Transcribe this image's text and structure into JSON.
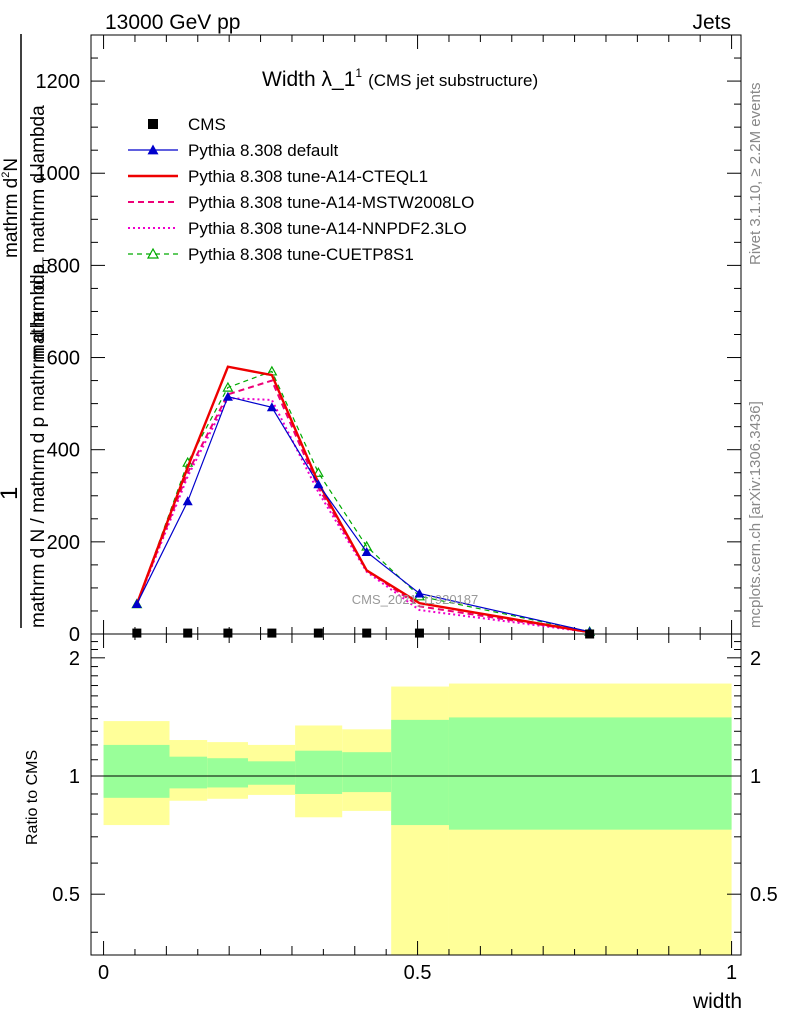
{
  "header": {
    "left": "13000 GeV pp",
    "right": "Jets"
  },
  "side_labels": {
    "rivet": "Rivet 3.1.10, ≥ 2.2M events",
    "mcplots": "mcplots.cern.ch [arXiv:1306.3436]"
  },
  "watermark": "CMS_2021_I1920187",
  "title": {
    "main": "Width λ_1",
    "superscript": "1",
    "sub": "(CMS jet substructure)"
  },
  "ylabel_top": {
    "numerator": "1",
    "denominator": "mathrm d N / mathrm d p_T mathrm d lambda",
    "right_part": "mathrm d²N",
    "right_den": "mathrm d p_T mathrm d lambda",
    "lines": [
      "mathrm d",
      "N",
      "mathrm d p",
      "T",
      "mathrm d lambda",
      "1",
      "mathrm d N / mathrm d p mathrm d lambda",
      "2"
    ]
  },
  "ylabel_ratio": "Ratio to CMS",
  "xlabel": "width",
  "legend": [
    {
      "label": "CMS",
      "color": "#000000"
    },
    {
      "label": "Pythia 8.308 default",
      "color": "#0000cc"
    },
    {
      "label": "Pythia 8.308 tune-A14-CTEQL1",
      "color": "#ee0000"
    },
    {
      "label": "Pythia 8.308 tune-A14-MSTW2008LO",
      "color": "#ee0077"
    },
    {
      "label": "Pythia 8.308 tune-A14-NNPDF2.3LO",
      "color": "#ee00cc"
    },
    {
      "label": "Pythia 8.308 tune-CUETP8S1",
      "color": "#00aa00"
    }
  ],
  "chart_data": [
    {
      "type": "line",
      "x": [
        0.053,
        0.134,
        0.198,
        0.268,
        0.342,
        0.419,
        0.503,
        0.774
      ],
      "xlim": [
        -0.02,
        1.015
      ],
      "ylim": [
        0,
        1300
      ],
      "yticks": [
        0,
        200,
        400,
        600,
        800,
        1000,
        1200
      ],
      "series": [
        {
          "name": "CMS",
          "values": [
            2,
            2,
            2,
            2,
            2,
            2,
            2,
            0
          ]
        },
        {
          "name": "Pythia 8.308 default",
          "values": [
            65,
            288,
            515,
            492,
            325,
            178,
            88,
            5
          ]
        },
        {
          "name": "Pythia 8.308 tune-A14-CTEQL1",
          "values": [
            65,
            362,
            580,
            562,
            328,
            138,
            67,
            4
          ]
        },
        {
          "name": "Pythia 8.308 tune-A14-MSTW2008LO",
          "values": [
            65,
            350,
            520,
            550,
            318,
            138,
            60,
            4
          ]
        },
        {
          "name": "Pythia 8.308 tune-A14-NNPDF2.3LO",
          "values": [
            65,
            342,
            512,
            508,
            308,
            135,
            52,
            4
          ]
        },
        {
          "name": "Pythia 8.308 tune-CUETP8S1",
          "values": [
            65,
            372,
            535,
            570,
            350,
            190,
            82,
            5
          ]
        }
      ]
    },
    {
      "type": "area",
      "bins": [
        [
          0.0,
          0.105
        ],
        [
          0.105,
          0.165
        ],
        [
          0.165,
          0.23
        ],
        [
          0.23,
          0.305
        ],
        [
          0.305,
          0.38
        ],
        [
          0.38,
          0.458
        ],
        [
          0.458,
          0.55
        ],
        [
          0.55,
          1.0
        ]
      ],
      "xlim": [
        -0.02,
        1.015
      ],
      "ylim": [
        0.35,
        2.3
      ],
      "xticks": [
        0,
        0.5,
        1
      ],
      "xtick_labels": [
        "0",
        "0.5",
        "1"
      ],
      "yticks": [
        0.5,
        1,
        2
      ],
      "ytick_labels": [
        "0.5",
        "1",
        "2"
      ],
      "band_inner": [
        [
          0.88,
          1.2
        ],
        [
          0.93,
          1.12
        ],
        [
          0.935,
          1.11
        ],
        [
          0.95,
          1.09
        ],
        [
          0.9,
          1.16
        ],
        [
          0.91,
          1.15
        ],
        [
          0.75,
          1.39
        ],
        [
          0.73,
          1.41
        ]
      ],
      "band_outer": [
        [
          0.75,
          1.38
        ],
        [
          0.865,
          1.235
        ],
        [
          0.875,
          1.22
        ],
        [
          0.895,
          1.2
        ],
        [
          0.785,
          1.345
        ],
        [
          0.815,
          1.315
        ],
        [
          0.35,
          1.69
        ],
        [
          0.35,
          1.72
        ]
      ],
      "inner_color": "#99ff99",
      "outer_color": "#ffff99"
    }
  ]
}
